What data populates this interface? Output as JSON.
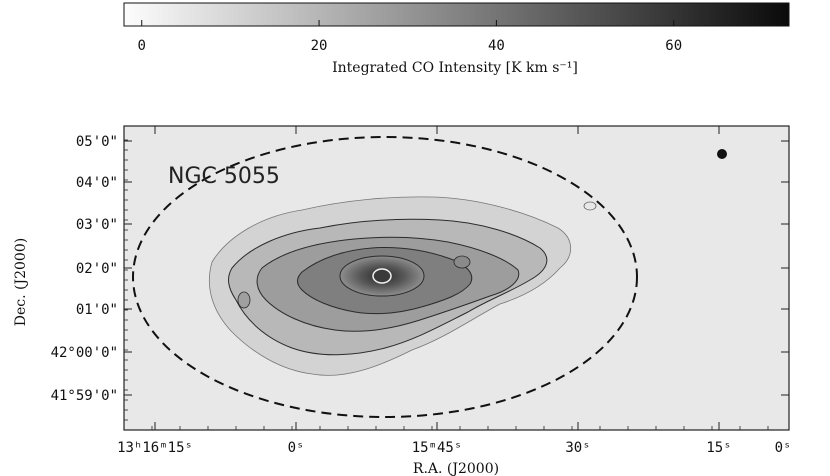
{
  "chart_data": [
    {
      "type": "colorbar",
      "palette": "grayscale",
      "range": [
        -2,
        73
      ],
      "ticks": [
        0,
        20,
        40,
        60
      ],
      "tick_labels": [
        "0",
        "20",
        "40",
        "60"
      ],
      "label": "Integrated CO Intensity [K km s⁻¹]"
    },
    {
      "type": "heatmap",
      "title": "NGC 5055",
      "xlabel": "R.A. (J2000)",
      "ylabel": "Dec. (J2000)",
      "x_ticks": [
        "13h16m15s",
        "0s",
        "15m45s",
        "30s",
        "15s",
        "0s"
      ],
      "x_tick_labels": [
        "13ʰ16ᵐ15ˢ",
        "0ˢ",
        "15ᵐ45ˢ",
        "30ˢ",
        "15ˢ",
        "0ˢ"
      ],
      "y_ticks": [
        "05'0\"",
        "04'0\"",
        "03'0\"",
        "02'0\"",
        "01'0\"",
        "42°00'0\"",
        "41°59'0\""
      ],
      "beam_marker": "filled-circle",
      "boundary": "dashed-ellipse",
      "contours": "nested irregular contours peaking at galaxy center"
    }
  ],
  "colors": {
    "background_field": "#e8e8e8",
    "frame": "#222222",
    "contour": "#2b2b2b",
    "peak": "#4a4a4a"
  }
}
